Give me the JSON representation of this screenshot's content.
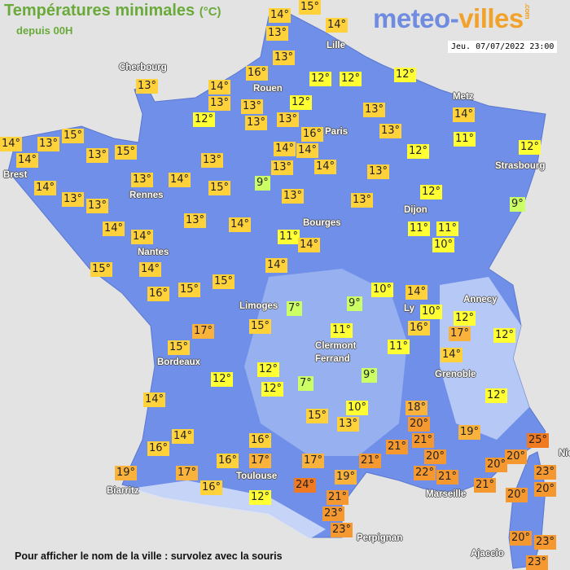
{
  "header": {
    "title": "Températures minimales",
    "unit": "(°C)",
    "subtitle": "depuis 00H",
    "logo_part1": "meteo-",
    "logo_part2": "villes",
    "logo_part3": ".com",
    "datetime": "Jeu. 07/07/2022 23:00"
  },
  "cities": [
    "Cherbourg",
    "Rouen",
    "Lille",
    "Paris",
    "Metz",
    "Strasbourg",
    "Brest",
    "Rennes",
    "Nantes",
    "Bourges",
    "Dijon",
    "Limoges",
    "Ly",
    "Annecy",
    "Clermont",
    "Ferrand",
    "Grenoble",
    "Bordeaux",
    "Toulouse",
    "Biarritz",
    "Marseille",
    "Nice",
    "Perpignan",
    "Ajaccio"
  ],
  "temperatures": [
    "14°",
    "15°",
    "13°",
    "14°",
    "13°",
    "12°",
    "12°",
    "12°",
    "16°",
    "13°",
    "14°",
    "13°",
    "12°",
    "13°",
    "13°",
    "12°",
    "13°",
    "16°",
    "13°",
    "13°",
    "14°",
    "11°",
    "12°",
    "12°",
    "15°",
    "14°",
    "13°",
    "14°",
    "13°",
    "15°",
    "14°",
    "14°",
    "14°",
    "13°",
    "13°",
    "9°",
    "13°",
    "13°",
    "14°",
    "15°",
    "14°",
    "13°",
    "13°",
    "13°",
    "13°",
    "12°",
    "9°",
    "14°",
    "14°",
    "13°",
    "14°",
    "11°",
    "14°",
    "11°",
    "11°",
    "10°",
    "15°",
    "14°",
    "14°",
    "16°",
    "15°",
    "15°",
    "10°",
    "14°",
    "7°",
    "9°",
    "10°",
    "12°",
    "16°",
    "17°",
    "12°",
    "17°",
    "15°",
    "11°",
    "11°",
    "14°",
    "15°",
    "12°",
    "9°",
    "12°",
    "12°",
    "7°",
    "12°",
    "14°",
    "10°",
    "15°",
    "13°",
    "18°",
    "20°",
    "19°",
    "14°",
    "16°",
    "16°",
    "21°",
    "21°",
    "25°",
    "20°",
    "16°",
    "17°",
    "17°",
    "21°",
    "20°",
    "22°",
    "21°",
    "20°",
    "23°",
    "19°",
    "17°",
    "16°",
    "19°",
    "24°",
    "21°",
    "20°",
    "20°",
    "12°",
    "21°",
    "23°",
    "23°",
    "20°",
    "23°",
    "23°"
  ],
  "colors": {
    "background": "#e3e3e3",
    "land": "#6f8fe8",
    "cold": "#ccff66",
    "mild": "#ffff33",
    "warm": "#ffd23c",
    "hot": "#f9b23c",
    "very_hot": "#f5982f",
    "hottest": "#ef7a22"
  },
  "footer": {
    "hint": "Pour afficher le nom de la ville : survolez avec la souris"
  }
}
